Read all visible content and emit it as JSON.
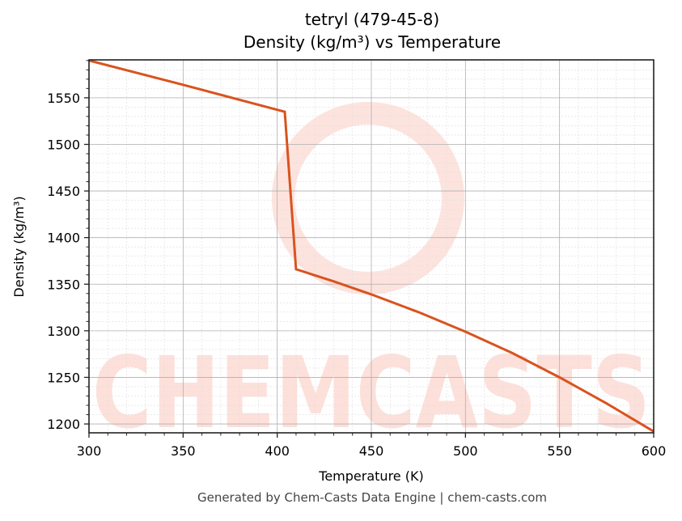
{
  "header": {
    "title_line1": "tetryl (479-45-8)",
    "title_line2": "Density (kg/m³) vs Temperature"
  },
  "footer": {
    "credit": "Generated by Chem-Casts Data Engine | chem-casts.com"
  },
  "watermark": {
    "text": "CHEMCASTS",
    "color": "#fde0da"
  },
  "colors": {
    "line": "#d9531e",
    "grid_major": "#b0b0b0",
    "grid_minor": "#dddddd"
  },
  "chart_data": {
    "type": "line",
    "title": "tetryl (479-45-8)\nDensity (kg/m³) vs Temperature",
    "xlabel": "Temperature (K)",
    "ylabel": "Density (kg/m³)",
    "xlim": [
      300,
      600
    ],
    "ylim": [
      1190.5,
      1590.7
    ],
    "x_ticks": [
      300,
      350,
      400,
      450,
      500,
      550,
      600
    ],
    "y_ticks": [
      1200,
      1250,
      1300,
      1350,
      1400,
      1450,
      1500,
      1550
    ],
    "x_tick_labels": [
      "300",
      "350",
      "400",
      "450",
      "500",
      "550",
      "600"
    ],
    "y_tick_labels": [
      "1200",
      "1250",
      "1300",
      "1350",
      "1400",
      "1450",
      "1500",
      "1550"
    ],
    "grid": true,
    "minor_grid": true,
    "legend": null,
    "series": [
      {
        "name": "Density",
        "x": [
          300,
          350,
          404,
          410,
          430,
          450,
          475,
          500,
          525,
          550,
          575,
          600
        ],
        "values": [
          1590,
          1564,
          1535,
          1366,
          1353,
          1339,
          1320,
          1299,
          1276,
          1250,
          1222,
          1192
        ]
      }
    ]
  }
}
